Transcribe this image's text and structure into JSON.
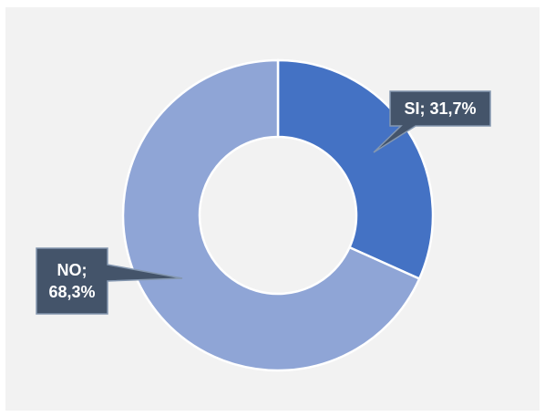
{
  "chart_data": {
    "type": "pie",
    "donut": true,
    "categories": [
      "SI",
      "NO"
    ],
    "values": [
      31.7,
      68.3
    ],
    "value_labels": [
      "SI; 31,7%",
      "NO; 68,3%"
    ],
    "colors": [
      "#4472c4",
      "#8fa5d6"
    ]
  }
}
